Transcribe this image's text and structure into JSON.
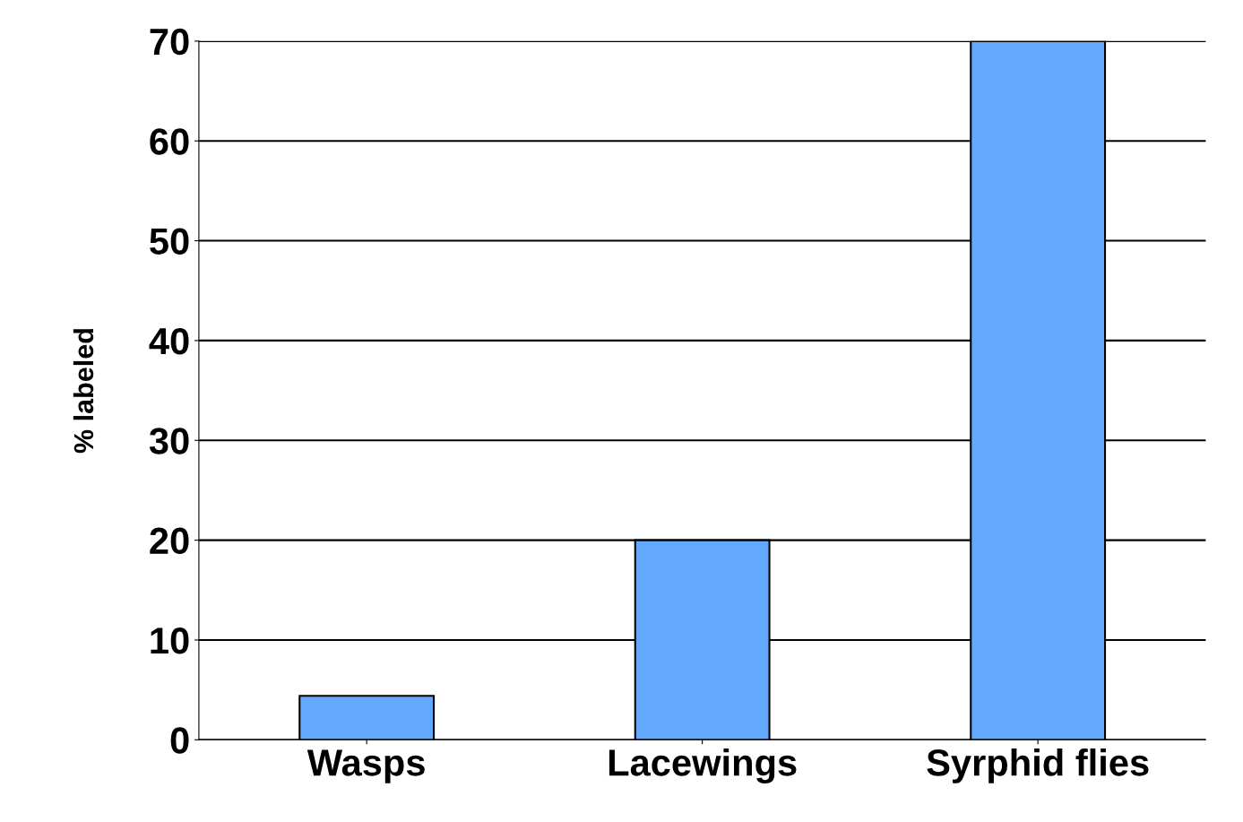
{
  "chart_data": {
    "type": "bar",
    "ylabel": "% labeled",
    "categories": [
      "Wasps",
      "Lacewings",
      "Syrphid flies"
    ],
    "values": [
      4.4,
      20,
      70
    ],
    "color": "#62a8fc",
    "ylim": [
      0,
      70
    ],
    "yticks": [
      0,
      10,
      20,
      30,
      40,
      50,
      60,
      70
    ],
    "grid": "y"
  }
}
